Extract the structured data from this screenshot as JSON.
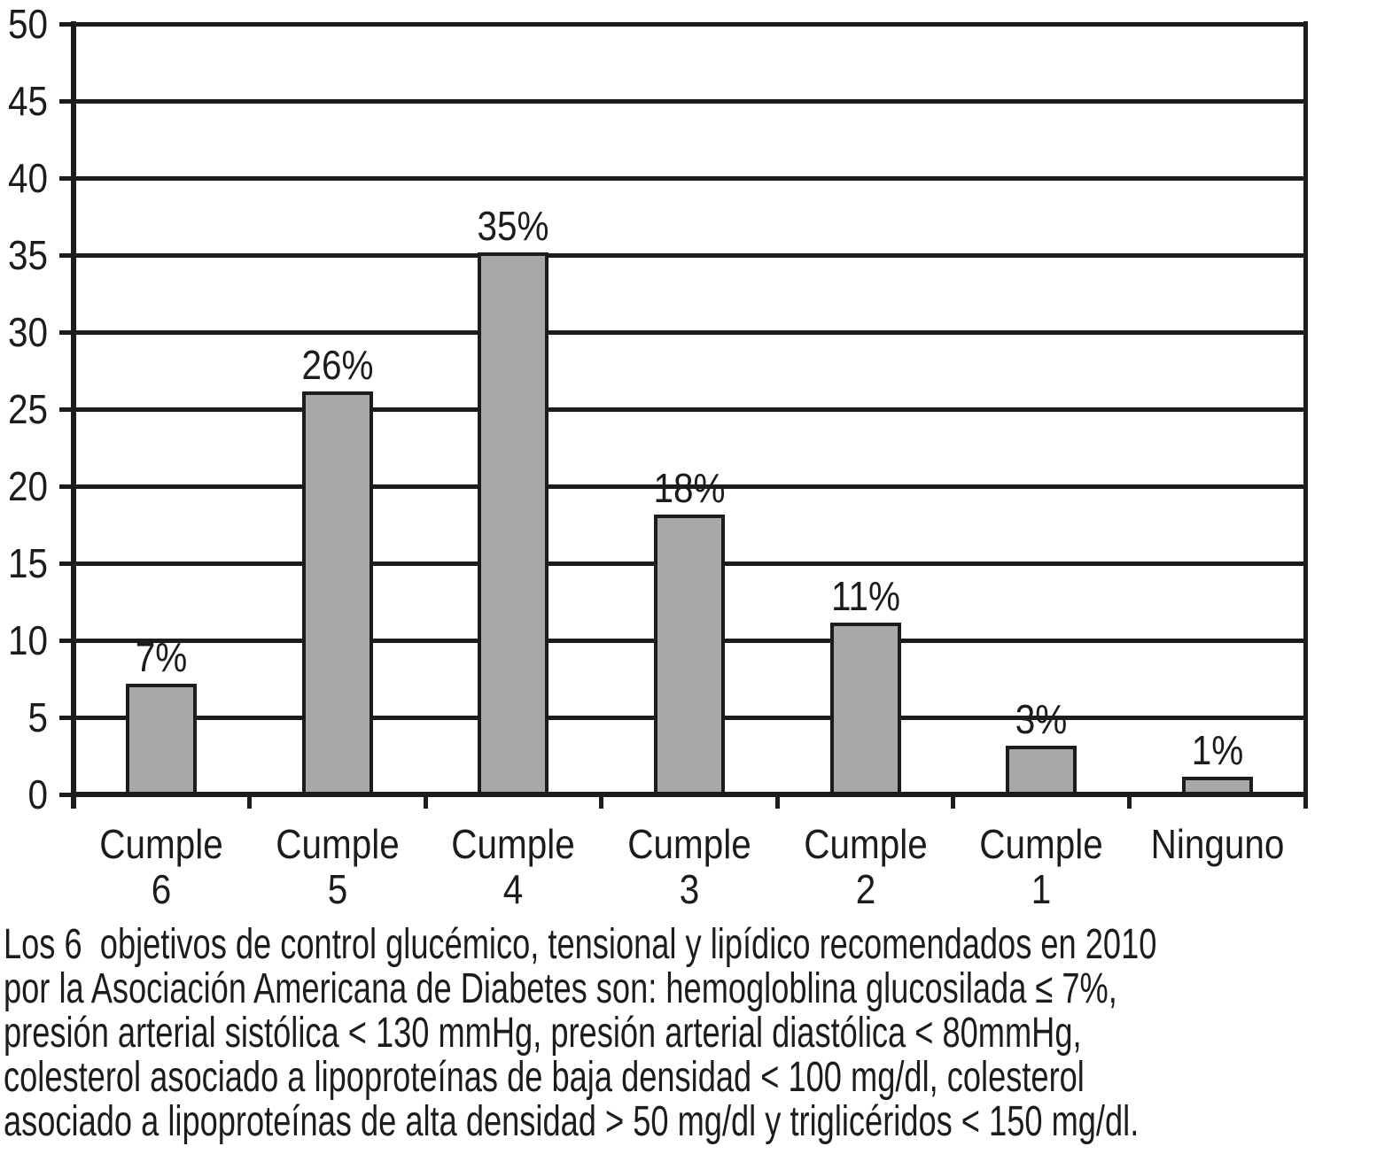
{
  "chart_data": {
    "type": "bar",
    "title": "",
    "xlabel": "",
    "ylabel": "",
    "categories": [
      "Cumple 6",
      "Cumple 5",
      "Cumple 4",
      "Cumple 3",
      "Cumple 2",
      "Cumple 1",
      "Ninguno"
    ],
    "category_label_lines": [
      [
        "Cumple",
        "6"
      ],
      [
        "Cumple",
        "5"
      ],
      [
        "Cumple",
        "4"
      ],
      [
        "Cumple",
        "3"
      ],
      [
        "Cumple",
        "2"
      ],
      [
        "Cumple",
        "1"
      ],
      [
        "Ninguno"
      ]
    ],
    "values": [
      7,
      26,
      35,
      18,
      11,
      3,
      1
    ],
    "value_labels": [
      "7%",
      "26%",
      "35%",
      "18%",
      "11%",
      "3%",
      "1%"
    ],
    "ylim": [
      0,
      50
    ],
    "ytick_step": 5,
    "yticks": [
      0,
      5,
      10,
      15,
      20,
      25,
      30,
      35,
      40,
      45,
      50
    ],
    "grid": true,
    "legend": false,
    "bar_color": "#a8a8aa",
    "line_color": "#1c1c1e",
    "background_color": "#ffffff"
  },
  "caption": {
    "lines": [
      "Los 6  objetivos de control glucémico, tensional y lipídico recomendados en 2010",
      "por la Asociación Americana de Diabetes son: hemogloblina glucosilada ≤ 7%,",
      "presión arterial sistólica < 130 mmHg, presión arterial diastólica < 80mmHg,",
      "colesterol asociado a lipoproteínas de baja densidad < 100 mg/dl, colesterol",
      "asociado a lipoproteínas de alta densidad > 50 mg/dl y triglicéridos < 150 mg/dl."
    ]
  }
}
